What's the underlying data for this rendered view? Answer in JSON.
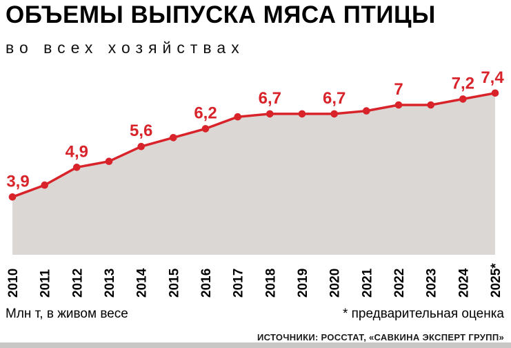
{
  "header": {
    "title": "ОБЪЕМЫ ВЫПУСКА МЯСА ПТИЦЫ",
    "subtitle": "во всех хозяйствах"
  },
  "footer": {
    "unit_note": "Млн т, в живом весе",
    "asterisk_note": "* предварительная оценка",
    "sources": "ИСТОЧНИКИ: РОССТАТ, «САВКИНА ЭКСПЕРТ ГРУПП»"
  },
  "colors": {
    "accent": "#d8232a",
    "area_fill": "#dad7d4",
    "text": "#000000",
    "bottom_bar": "#c9c7c5"
  },
  "chart_data": {
    "type": "area",
    "title": "ОБЪЕМЫ ВЫПУСКА МЯСА ПТИЦЫ — во всех хозяйствах",
    "ylabel": "Млн т, в живом весе",
    "categories": [
      "2010",
      "2011",
      "2012",
      "2013",
      "2014",
      "2015",
      "2016",
      "2017",
      "2018",
      "2019",
      "2020",
      "2021",
      "2022",
      "2023",
      "2024",
      "2025*"
    ],
    "values": [
      3.9,
      4.3,
      4.9,
      5.1,
      5.6,
      5.9,
      6.2,
      6.6,
      6.7,
      6.7,
      6.7,
      6.8,
      7.0,
      7.0,
      7.2,
      7.4
    ],
    "point_labels": [
      "3,9",
      "",
      "4,9",
      "",
      "5,6",
      "",
      "6,2",
      "",
      "6,7",
      "",
      "6,7",
      "",
      "7",
      "",
      "7,2",
      "7,4"
    ],
    "ylim": [
      1.9,
      7.9
    ],
    "grid": false,
    "legend": false,
    "annotations": [
      "* предварительная оценка"
    ]
  }
}
